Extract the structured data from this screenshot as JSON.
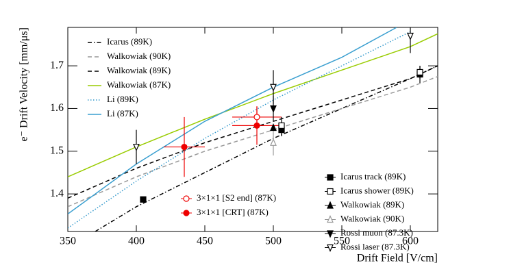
{
  "chart_data": {
    "type": "line",
    "x_label": "Drift Field [V/cm]",
    "y_label": "e⁻ Drift Velocity [mm/μs]",
    "xlim": [
      350,
      620
    ],
    "ylim": [
      1.312,
      1.79
    ],
    "xticks": [
      350,
      400,
      450,
      500,
      550,
      600
    ],
    "yticks": [
      1.4,
      1.5,
      1.6,
      1.7
    ],
    "series": [
      {
        "name": "Icarus (89K)",
        "color": "#000000",
        "dash": "dashdot",
        "legend": "upper left",
        "x": [
          370,
          400,
          450,
          500,
          550,
          600,
          620
        ],
        "y": [
          1.312,
          1.37,
          1.45,
          1.53,
          1.6,
          1.67,
          1.7
        ]
      },
      {
        "name": "Walkowiak (90K)",
        "color": "#999999",
        "dash": "dashed",
        "legend": "upper left",
        "x": [
          350,
          400,
          450,
          500,
          550,
          600,
          620
        ],
        "y": [
          1.37,
          1.44,
          1.5,
          1.55,
          1.6,
          1.65,
          1.675
        ]
      },
      {
        "name": "Walkowiak (89K)",
        "color": "#000000",
        "dash": "dashed",
        "legend": "upper left",
        "x": [
          350,
          400,
          450,
          500,
          550,
          600,
          620
        ],
        "y": [
          1.39,
          1.46,
          1.52,
          1.57,
          1.62,
          1.67,
          1.7
        ]
      },
      {
        "name": "Walkowiak (87K)",
        "color": "#99cc00",
        "dash": "solid",
        "legend": "upper left",
        "x": [
          350,
          400,
          450,
          500,
          550,
          600,
          620
        ],
        "y": [
          1.44,
          1.51,
          1.575,
          1.635,
          1.69,
          1.745,
          1.775
        ]
      },
      {
        "name": "Li (89K)",
        "color": "#3399cc",
        "dash": "dotted",
        "legend": "upper left",
        "x": [
          350,
          400,
          450,
          500,
          550,
          600
        ],
        "y": [
          1.32,
          1.43,
          1.53,
          1.62,
          1.7,
          1.78
        ]
      },
      {
        "name": "Li (87K)",
        "color": "#3a9fd0",
        "dash": "solid",
        "legend": "upper left",
        "x": [
          350,
          400,
          450,
          500,
          550,
          590
        ],
        "y": [
          1.353,
          1.47,
          1.57,
          1.65,
          1.72,
          1.79
        ]
      },
      {
        "name": "3×1×1 [S2 end] (87K)",
        "color": "#ee0000",
        "marker": "circle",
        "filled": false,
        "legend": "lower center",
        "x": [
          488
        ],
        "y": [
          1.58
        ],
        "xerr": [
          18
        ],
        "yerr": [
          0.025
        ]
      },
      {
        "name": "3×1×1 [CRT] (87K)",
        "color": "#ee0000",
        "marker": "circle",
        "filled": true,
        "legend": "lower center",
        "x": [
          435,
          488
        ],
        "y": [
          1.51,
          1.56
        ],
        "xerr": [
          15,
          18
        ],
        "yerr": [
          0.07,
          0.045
        ]
      },
      {
        "name": "Icarus track (89K)",
        "color": "#000000",
        "marker": "square",
        "filled": true,
        "legend": "lower right",
        "x": [
          405,
          506,
          607
        ],
        "y": [
          1.387,
          1.55,
          1.68
        ],
        "yerr": [
          0,
          0.015,
          0.02
        ]
      },
      {
        "name": "Icarus shower (89K)",
        "color": "#000000",
        "marker": "square",
        "filled": false,
        "legend": "lower right",
        "x": [
          506,
          607
        ],
        "y": [
          1.56,
          1.685
        ],
        "yerr": [
          0.02,
          0.015
        ]
      },
      {
        "name": "Walkowiak (89K)",
        "color": "#000000",
        "marker": "triangle-up",
        "filled": true,
        "legend": "lower right",
        "x": [
          500
        ],
        "y": [
          1.555
        ],
        "yerr": [
          0
        ]
      },
      {
        "name": "Walkowiak (90K)",
        "color": "#999999",
        "marker": "triangle-up",
        "filled": false,
        "legend": "lower right",
        "x": [
          500
        ],
        "y": [
          1.52
        ],
        "yerr": [
          0.03
        ]
      },
      {
        "name": "Rossi muon (87.3K)",
        "color": "#000000",
        "marker": "triangle-down",
        "filled": true,
        "legend": "lower right",
        "x": [
          500
        ],
        "y": [
          1.6
        ],
        "yerr": [
          0.03
        ]
      },
      {
        "name": "Rossi laser (87.3K)",
        "color": "#000000",
        "marker": "triangle-down",
        "filled": false,
        "legend": "lower right",
        "x": [
          400,
          500,
          600
        ],
        "y": [
          1.51,
          1.65,
          1.77
        ],
        "yerr": [
          0.04,
          0.04,
          0.04
        ]
      }
    ]
  }
}
